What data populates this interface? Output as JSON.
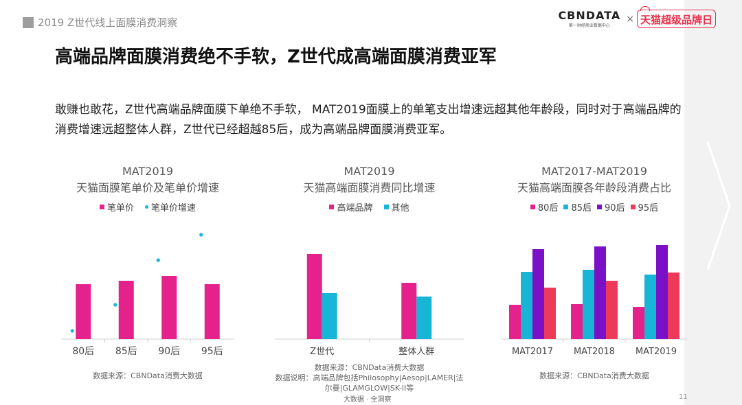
{
  "header": {
    "report_label": "2019 Z世代线上面膜消费洞察",
    "cbn_logo": "CBNDATA",
    "cbn_tagline": "第一财经商业数据中心",
    "times": "×",
    "tmall_logo": "天猫超级品牌日"
  },
  "title": "高端品牌面膜消费绝不手软，Z世代成高端面膜消费亚军",
  "description": "敢赚也敢花，Z世代高端品牌面膜下单绝不手软， MAT2019面膜上的单笔支出增速远超其他年龄段，同时对于高端品牌的消费增速远超整体人群，Z世代已经超越85后，成为高端品牌面膜消费亚军。",
  "page_number": "11",
  "footer": "大数据 · 全洞察",
  "colors": {
    "magenta": "#e5218c",
    "cyan": "#17b6d6",
    "purple": "#7a11c6",
    "red": "#ee3a5a",
    "axis": "#cfcfcf"
  },
  "chart_data": [
    {
      "type": "bar",
      "title": "MAT2019",
      "subtitle": "天猫面膜笔单价及笔单价增速",
      "categories": [
        "80后",
        "85后",
        "90后",
        "95后"
      ],
      "series": [
        {
          "name": "笔单价",
          "kind": "bar",
          "color": "#e5218c",
          "values": [
            80,
            85,
            92,
            80
          ]
        },
        {
          "name": "笔单价增速",
          "kind": "scatter",
          "color": "#17b6d6",
          "values": [
            12,
            50,
            115,
            152
          ]
        }
      ],
      "ylim": [
        0,
        165
      ],
      "source": "数据来源：CBNData消费大数据"
    },
    {
      "type": "bar",
      "title": "MAT2019",
      "subtitle": "天猫高端面膜消费同比增速",
      "categories": [
        "Z世代",
        "整体人群"
      ],
      "series": [
        {
          "name": "高端品牌",
          "color": "#e5218c",
          "values": [
            124,
            82
          ]
        },
        {
          "name": "其他",
          "color": "#17b6d6",
          "values": [
            67,
            62
          ]
        }
      ],
      "ylim": [
        0,
        165
      ],
      "source": "数据来源：CBNData消费大数据",
      "note": "数据说明：高端品牌包括Philosophy|Aesop|LAMER|法尔曼|GLAMGLOW|SK-II等"
    },
    {
      "type": "bar",
      "title": "MAT2017-MAT2019",
      "subtitle": "天猫高端面膜各年龄段消费占比",
      "categories": [
        "MAT2017",
        "MAT2018",
        "MAT2019"
      ],
      "series": [
        {
          "name": "80后",
          "color": "#e5218c",
          "values": [
            50,
            51,
            47
          ]
        },
        {
          "name": "85后",
          "color": "#17b6d6",
          "values": [
            98,
            101,
            94
          ]
        },
        {
          "name": "90后",
          "color": "#7a11c6",
          "values": [
            131,
            135,
            137
          ]
        },
        {
          "name": "95后",
          "color": "#ee3a5a",
          "values": [
            75,
            85,
            97
          ]
        }
      ],
      "ylim": [
        0,
        165
      ],
      "source": "数据来源：CBNData消费大数据"
    }
  ]
}
